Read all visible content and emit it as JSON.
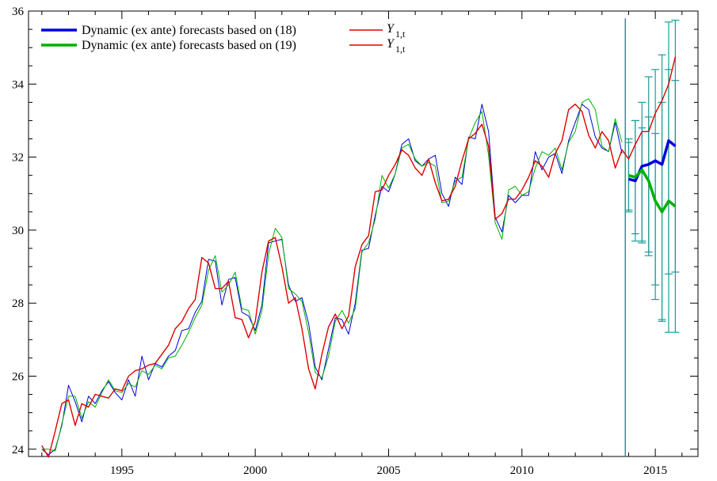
{
  "chart_data": {
    "type": "line",
    "xlim": [
      1991.5,
      2016.6
    ],
    "ylim": [
      23.8,
      36.0
    ],
    "x_ticks": [
      1995,
      2000,
      2005,
      2010,
      2015
    ],
    "y_ticks": [
      24,
      26,
      28,
      30,
      32,
      34,
      36
    ],
    "x_tick_labels": [
      "1995",
      "2000",
      "2005",
      "2010",
      "2015"
    ],
    "y_tick_labels": [
      "24",
      "26",
      "28",
      "30",
      "32",
      "34",
      "36"
    ],
    "grid": false,
    "legend": {
      "placement": "top-left",
      "entries": [
        {
          "text": "Dynamic (ex ante) forecasts based on (18)",
          "color": "#0000e0"
        },
        {
          "text": "Dynamic (ex ante) forecasts based on (19)",
          "color": "#00b000"
        }
      ],
      "math_entries": [
        {
          "main": "Y",
          "sub": "1,t",
          "color": "#e00000"
        },
        {
          "main": "Y",
          "sub": "1,t",
          "color": "#e00000"
        }
      ]
    },
    "colors": {
      "actual": "#e00000",
      "fit18": "#0000e0",
      "fit19": "#00b000",
      "bands": "#1f9a9a"
    },
    "series": [
      {
        "name": "Y_1,t",
        "role": "actual",
        "x": [
          1992.0,
          1992.25,
          1992.5,
          1992.75,
          1993.0,
          1993.25,
          1993.5,
          1993.75,
          1994.0,
          1994.25,
          1994.5,
          1994.75,
          1995.0,
          1995.25,
          1995.5,
          1995.75,
          1996.0,
          1996.25,
          1996.5,
          1996.75,
          1997.0,
          1997.25,
          1997.5,
          1997.75,
          1998.0,
          1998.25,
          1998.5,
          1998.75,
          1999.0,
          1999.25,
          1999.5,
          1999.75,
          2000.0,
          2000.25,
          2000.5,
          2000.75,
          2001.0,
          2001.25,
          2001.5,
          2001.75,
          2002.0,
          2002.25,
          2002.5,
          2002.75,
          2003.0,
          2003.25,
          2003.5,
          2003.75,
          2004.0,
          2004.25,
          2004.5,
          2004.75,
          2005.0,
          2005.25,
          2005.5,
          2005.75,
          2006.0,
          2006.25,
          2006.5,
          2006.75,
          2007.0,
          2007.25,
          2007.5,
          2007.75,
          2008.0,
          2008.25,
          2008.5,
          2008.75,
          2009.0,
          2009.25,
          2009.5,
          2009.75,
          2010.0,
          2010.25,
          2010.5,
          2010.75,
          2011.0,
          2011.25,
          2011.5,
          2011.75,
          2012.0,
          2012.25,
          2012.5,
          2012.75,
          2013.0,
          2013.25,
          2013.5,
          2013.75,
          2014.0,
          2014.25,
          2014.5,
          2014.75,
          2015.0,
          2015.25,
          2015.5,
          2015.75
        ],
        "y": [
          24.1,
          23.78,
          24.5,
          25.25,
          25.35,
          24.65,
          25.25,
          25.15,
          25.5,
          25.45,
          25.4,
          25.65,
          25.6,
          26.0,
          26.15,
          26.2,
          26.3,
          26.35,
          26.6,
          26.85,
          27.3,
          27.5,
          27.85,
          28.1,
          29.25,
          29.1,
          28.4,
          28.4,
          28.6,
          27.6,
          27.55,
          27.05,
          27.5,
          28.85,
          29.7,
          29.8,
          29.0,
          28.0,
          28.15,
          27.3,
          26.2,
          25.65,
          26.6,
          27.35,
          27.7,
          27.3,
          27.65,
          29.0,
          29.6,
          29.85,
          31.05,
          31.1,
          31.5,
          31.8,
          32.2,
          32.05,
          31.7,
          31.5,
          31.95,
          31.3,
          30.8,
          30.85,
          31.2,
          31.9,
          32.5,
          32.65,
          32.9,
          32.3,
          30.3,
          30.45,
          30.85,
          30.85,
          31.1,
          31.45,
          31.9,
          31.75,
          31.45,
          32.1,
          32.45,
          33.3,
          33.45,
          33.25,
          32.6,
          32.25,
          32.7,
          32.45,
          31.7,
          32.2,
          31.95,
          32.35,
          32.7,
          32.7,
          33.2,
          33.55,
          34.0,
          34.75
        ]
      },
      {
        "name": "Dynamic (ex ante) forecasts based on (18)",
        "role": "fit18",
        "x": [
          1992.0,
          1992.25,
          1992.5,
          1992.75,
          1993.0,
          1993.25,
          1993.5,
          1993.75,
          1994.0,
          1994.25,
          1994.5,
          1994.75,
          1995.0,
          1995.25,
          1995.5,
          1995.75,
          1996.0,
          1996.25,
          1996.5,
          1996.75,
          1997.0,
          1997.25,
          1997.5,
          1997.75,
          1998.0,
          1998.25,
          1998.5,
          1998.75,
          1999.0,
          1999.25,
          1999.5,
          1999.75,
          2000.0,
          2000.25,
          2000.5,
          2000.75,
          2001.0,
          2001.25,
          2001.5,
          2001.75,
          2002.0,
          2002.25,
          2002.5,
          2002.75,
          2003.0,
          2003.25,
          2003.5,
          2003.75,
          2004.0,
          2004.25,
          2004.5,
          2004.75,
          2005.0,
          2005.25,
          2005.5,
          2005.75,
          2006.0,
          2006.25,
          2006.5,
          2006.75,
          2007.0,
          2007.25,
          2007.5,
          2007.75,
          2008.0,
          2008.25,
          2008.5,
          2008.75,
          2009.0,
          2009.25,
          2009.5,
          2009.75,
          2010.0,
          2010.25,
          2010.5,
          2010.75,
          2011.0,
          2011.25,
          2011.5,
          2011.75,
          2012.0,
          2012.25,
          2012.5,
          2012.75,
          2013.0,
          2013.25,
          2013.5,
          2013.75
        ],
        "y": [
          24.0,
          23.85,
          24.0,
          24.65,
          25.75,
          25.3,
          24.75,
          25.45,
          25.25,
          25.6,
          25.85,
          25.55,
          25.35,
          25.9,
          25.45,
          26.55,
          25.9,
          26.35,
          26.25,
          26.55,
          26.7,
          27.25,
          27.3,
          27.75,
          28.05,
          29.2,
          29.15,
          27.95,
          28.65,
          28.7,
          27.75,
          27.65,
          27.25,
          27.95,
          29.65,
          29.7,
          29.75,
          28.5,
          28.05,
          28.15,
          27.45,
          26.25,
          25.9,
          26.75,
          27.6,
          27.55,
          27.15,
          28.0,
          29.45,
          29.5,
          30.4,
          31.2,
          31.05,
          31.55,
          32.35,
          32.5,
          31.9,
          31.75,
          31.95,
          32.05,
          31.0,
          30.65,
          31.45,
          31.25,
          32.55,
          32.5,
          33.45,
          32.7,
          30.35,
          29.95,
          30.95,
          30.75,
          30.95,
          30.95,
          32.15,
          31.65,
          32.0,
          32.1,
          31.55,
          32.45,
          32.95,
          33.45,
          33.3,
          32.55,
          32.25,
          32.15,
          32.95,
          32.1
        ]
      },
      {
        "name": "Dynamic (ex ante) forecasts based on (19)",
        "role": "fit19",
        "x": [
          1992.0,
          1992.25,
          1992.5,
          1992.75,
          1993.0,
          1993.25,
          1993.5,
          1993.75,
          1994.0,
          1994.25,
          1994.5,
          1994.75,
          1995.0,
          1995.25,
          1995.5,
          1995.75,
          1996.0,
          1996.25,
          1996.5,
          1996.75,
          1997.0,
          1997.25,
          1997.5,
          1997.75,
          1998.0,
          1998.25,
          1998.5,
          1998.75,
          1999.0,
          1999.25,
          1999.5,
          1999.75,
          2000.0,
          2000.25,
          2000.5,
          2000.75,
          2001.0,
          2001.25,
          2001.5,
          2001.75,
          2002.0,
          2002.25,
          2002.5,
          2002.75,
          2003.0,
          2003.25,
          2003.5,
          2003.75,
          2004.0,
          2004.25,
          2004.5,
          2004.75,
          2005.0,
          2005.25,
          2005.5,
          2005.75,
          2006.0,
          2006.25,
          2006.5,
          2006.75,
          2007.0,
          2007.25,
          2007.5,
          2007.75,
          2008.0,
          2008.25,
          2008.5,
          2008.75,
          2009.0,
          2009.25,
          2009.5,
          2009.75,
          2010.0,
          2010.25,
          2010.5,
          2010.75,
          2011.0,
          2011.25,
          2011.5,
          2011.75,
          2012.0,
          2012.25,
          2012.5,
          2012.75,
          2013.0,
          2013.25,
          2013.5,
          2013.75
        ],
        "y": [
          24.0,
          24.0,
          23.95,
          24.7,
          25.45,
          25.45,
          24.85,
          25.3,
          25.15,
          25.55,
          25.9,
          25.6,
          25.55,
          25.8,
          25.7,
          26.15,
          26.05,
          26.3,
          26.2,
          26.5,
          26.55,
          26.85,
          27.2,
          27.6,
          27.95,
          28.9,
          29.3,
          28.3,
          28.5,
          28.85,
          27.85,
          27.8,
          27.15,
          27.8,
          29.35,
          30.05,
          29.8,
          28.4,
          28.25,
          28.05,
          27.2,
          26.1,
          25.95,
          26.55,
          27.5,
          27.8,
          27.45,
          27.85,
          29.4,
          29.65,
          30.3,
          31.5,
          31.15,
          31.55,
          32.25,
          32.35,
          31.95,
          31.75,
          31.85,
          31.75,
          30.75,
          30.8,
          31.35,
          31.45,
          32.5,
          32.95,
          33.25,
          32.05,
          30.2,
          29.75,
          31.1,
          31.2,
          30.95,
          31.05,
          31.7,
          32.15,
          32.05,
          32.25,
          31.65,
          32.4,
          32.7,
          33.5,
          33.6,
          33.3,
          32.3,
          32.15,
          33.05,
          32.4
        ]
      }
    ],
    "forecasts": [
      {
        "name": "Dynamic (ex ante) forecasts based on (18)",
        "role": "fit18",
        "x": [
          2014.0,
          2014.25,
          2014.5,
          2014.75,
          2015.0,
          2015.25,
          2015.5,
          2015.75
        ],
        "y": [
          31.4,
          31.35,
          31.75,
          31.8,
          31.9,
          31.8,
          32.45,
          32.3
        ],
        "band_low": [
          30.55,
          29.9,
          29.7,
          29.4,
          28.1,
          27.55,
          27.2,
          27.2
        ],
        "band_high": [
          32.5,
          33.0,
          33.5,
          34.2,
          34.4,
          34.8,
          35.7,
          35.75
        ]
      },
      {
        "name": "Dynamic (ex ante) forecasts based on (19)",
        "role": "fit19",
        "x": [
          2014.0,
          2014.25,
          2014.5,
          2014.75,
          2015.0,
          2015.25,
          2015.5,
          2015.75
        ],
        "y": [
          31.5,
          31.45,
          31.65,
          31.35,
          30.8,
          30.5,
          30.8,
          30.65
        ],
        "band_low": [
          30.5,
          29.7,
          29.65,
          29.3,
          28.5,
          27.5,
          28.8,
          28.85
        ],
        "band_high": [
          32.4,
          33.0,
          32.8,
          33.1,
          32.65,
          33.5,
          34.4,
          34.1
        ]
      }
    ],
    "forecast_start_line": {
      "x": 2013.875,
      "y_top": 35.8,
      "y_bottom": 23.8
    }
  }
}
